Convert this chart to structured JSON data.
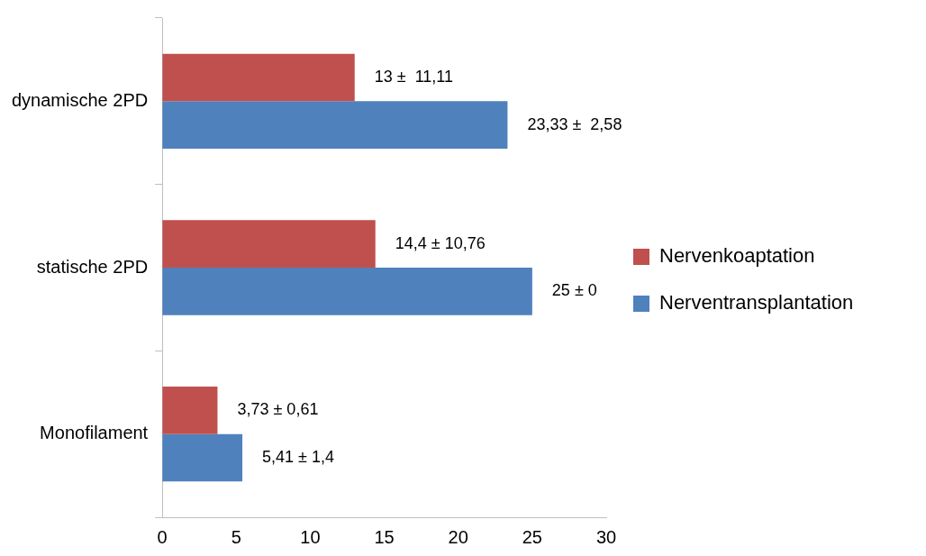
{
  "chart_data": {
    "type": "bar",
    "orientation": "horizontal",
    "categories": [
      "dynamische 2PD",
      "statische 2PD",
      "Monofilament"
    ],
    "series": [
      {
        "name": "Nervenkoaptation",
        "color": "#c0504d",
        "values": [
          13,
          14.4,
          3.73
        ],
        "value_labels": [
          "13 ±  11,11",
          "14,4 ± 10,76",
          "3,73 ± 0,61"
        ]
      },
      {
        "name": "Nerventransplantation",
        "color": "#4f81bd",
        "values": [
          23.33,
          25,
          5.41
        ],
        "value_labels": [
          "23,33 ±  2,58",
          "25 ± 0",
          "5,41 ± 1,4"
        ]
      }
    ],
    "xlim": [
      0,
      30
    ],
    "xticks": [
      0,
      5,
      10,
      15,
      20,
      25,
      30
    ],
    "grid": false,
    "legend": "right"
  }
}
